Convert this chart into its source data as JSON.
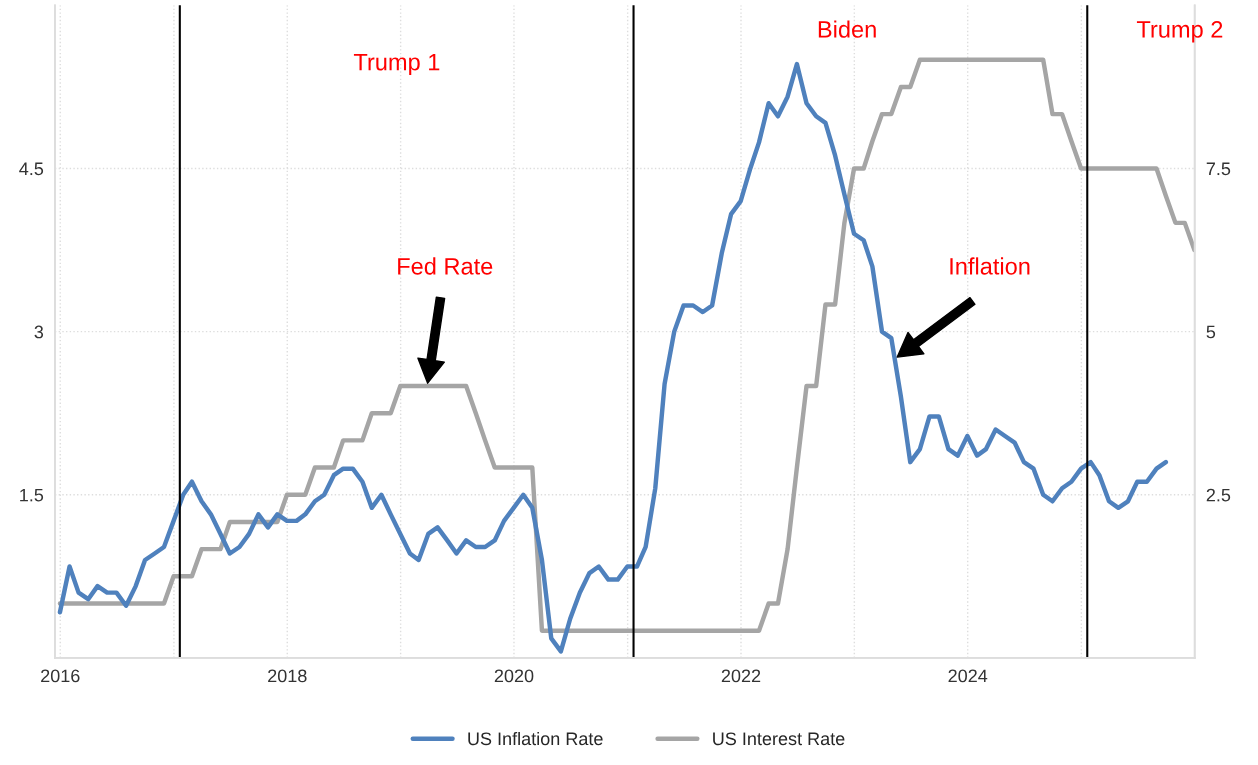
{
  "chart_data": {
    "type": "line",
    "xlim": [
      "2015-12-15",
      "2026-01-01"
    ],
    "xticks": [
      "2016",
      {
        "value": "2017",
        "label": null
      },
      "2018",
      {
        "value": "2019",
        "label": null
      },
      "2020",
      {
        "value": "2021",
        "label": null
      },
      "2022",
      {
        "value": "2023",
        "label": null
      },
      "2024",
      {
        "value": "2025",
        "label": null
      }
    ],
    "ylim": [
      0,
      6
    ],
    "yticks": [
      1.5,
      3,
      4.5
    ],
    "y2lim": [
      0,
      10
    ],
    "y2ticks": [
      2.5,
      5,
      7.5
    ],
    "grid": true,
    "legend": "bottom",
    "series": [
      {
        "name": "US Inflation Rate",
        "color": "#4f81bd",
        "axis": "y2",
        "x": [
          "2015-12-31",
          "2016-01-31",
          "2016-02-29",
          "2016-03-31",
          "2016-04-30",
          "2016-05-31",
          "2016-06-30",
          "2016-07-31",
          "2016-08-31",
          "2016-09-30",
          "2016-10-31",
          "2016-11-30",
          "2016-12-31",
          "2017-01-31",
          "2017-02-28",
          "2017-03-31",
          "2017-04-30",
          "2017-05-31",
          "2017-06-30",
          "2017-07-31",
          "2017-08-31",
          "2017-09-30",
          "2017-10-31",
          "2017-11-30",
          "2017-12-31",
          "2018-01-31",
          "2018-02-28",
          "2018-03-31",
          "2018-04-30",
          "2018-05-31",
          "2018-06-30",
          "2018-07-31",
          "2018-08-31",
          "2018-09-30",
          "2018-10-31",
          "2018-11-30",
          "2018-12-31",
          "2019-01-31",
          "2019-02-28",
          "2019-03-31",
          "2019-04-30",
          "2019-05-31",
          "2019-06-30",
          "2019-07-31",
          "2019-08-31",
          "2019-09-30",
          "2019-10-31",
          "2019-11-30",
          "2019-12-31",
          "2020-01-31",
          "2020-02-29",
          "2020-03-31",
          "2020-04-30",
          "2020-05-31",
          "2020-06-30",
          "2020-07-31",
          "2020-08-31",
          "2020-09-30",
          "2020-10-31",
          "2020-11-30",
          "2020-12-31",
          "2021-01-31",
          "2021-02-28",
          "2021-03-31",
          "2021-04-30",
          "2021-05-31",
          "2021-06-30",
          "2021-07-31",
          "2021-08-31",
          "2021-09-30",
          "2021-10-31",
          "2021-11-30",
          "2021-12-31",
          "2022-01-31",
          "2022-02-28",
          "2022-03-31",
          "2022-04-30",
          "2022-05-31",
          "2022-06-30",
          "2022-07-31",
          "2022-08-31",
          "2022-09-30",
          "2022-10-31",
          "2022-11-30",
          "2022-12-31",
          "2023-01-31",
          "2023-02-28",
          "2023-03-31",
          "2023-04-30",
          "2023-05-31",
          "2023-06-30",
          "2023-07-31",
          "2023-08-31",
          "2023-09-30",
          "2023-10-31",
          "2023-11-30",
          "2023-12-31",
          "2024-01-31",
          "2024-02-29",
          "2024-03-31",
          "2024-04-30",
          "2024-05-31",
          "2024-06-30",
          "2024-07-31",
          "2024-08-31",
          "2024-09-30",
          "2024-10-31",
          "2024-11-30",
          "2024-12-31",
          "2025-01-31",
          "2025-02-28",
          "2025-03-31",
          "2025-04-30",
          "2025-05-31",
          "2025-06-30",
          "2025-07-31",
          "2025-08-31",
          "2025-09-30"
        ],
        "values": [
          0.7,
          1.4,
          1.0,
          0.9,
          1.1,
          1.0,
          1.0,
          0.8,
          1.1,
          1.5,
          1.6,
          1.7,
          2.1,
          2.5,
          2.7,
          2.4,
          2.2,
          1.9,
          1.6,
          1.7,
          1.9,
          2.2,
          2.0,
          2.2,
          2.1,
          2.1,
          2.2,
          2.4,
          2.5,
          2.8,
          2.9,
          2.9,
          2.7,
          2.3,
          2.5,
          2.2,
          1.9,
          1.6,
          1.5,
          1.9,
          2.0,
          1.8,
          1.6,
          1.8,
          1.7,
          1.7,
          1.8,
          2.1,
          2.3,
          2.5,
          2.3,
          1.5,
          0.3,
          0.1,
          0.6,
          1.0,
          1.3,
          1.4,
          1.2,
          1.2,
          1.4,
          1.4,
          1.7,
          2.6,
          4.2,
          5.0,
          5.4,
          5.4,
          5.3,
          5.4,
          6.2,
          6.8,
          7.0,
          7.5,
          7.9,
          8.5,
          8.3,
          8.6,
          9.1,
          8.5,
          8.3,
          8.2,
          7.7,
          7.1,
          6.5,
          6.4,
          6.0,
          5.0,
          4.9,
          4.0,
          3.0,
          3.2,
          3.7,
          3.7,
          3.2,
          3.1,
          3.4,
          3.1,
          3.2,
          3.5,
          3.4,
          3.3,
          3.0,
          2.9,
          2.5,
          2.4,
          2.6,
          2.7,
          2.9,
          3.0,
          2.8,
          2.4,
          2.3,
          2.4,
          2.7,
          2.7,
          2.9,
          3.0
        ]
      },
      {
        "name": "US Interest Rate",
        "color": "#a5a5a5",
        "axis": "y",
        "x": [
          "2015-12-31",
          "2016-11-30",
          "2016-12-31",
          "2017-02-28",
          "2017-03-31",
          "2017-05-31",
          "2017-06-30",
          "2017-11-30",
          "2017-12-31",
          "2018-02-28",
          "2018-03-31",
          "2018-05-31",
          "2018-06-30",
          "2018-08-31",
          "2018-09-30",
          "2018-11-30",
          "2018-12-31",
          "2019-07-31",
          "2019-08-31",
          "2019-09-30",
          "2019-10-31",
          "2020-02-29",
          "2020-03-31",
          "2022-02-28",
          "2022-03-31",
          "2022-04-30",
          "2022-05-31",
          "2022-06-30",
          "2022-07-31",
          "2022-08-31",
          "2022-09-30",
          "2022-10-31",
          "2022-11-30",
          "2022-12-31",
          "2023-01-31",
          "2023-02-28",
          "2023-03-31",
          "2023-04-30",
          "2023-05-31",
          "2023-06-30",
          "2023-07-31",
          "2024-08-31",
          "2024-09-30",
          "2024-10-31",
          "2024-11-30",
          "2024-12-31",
          "2025-08-31",
          "2025-09-30",
          "2025-10-31",
          "2025-11-30",
          "2025-12-31"
        ],
        "values": [
          0.5,
          0.5,
          0.75,
          0.75,
          1.0,
          1.0,
          1.25,
          1.25,
          1.5,
          1.5,
          1.75,
          1.75,
          2.0,
          2.0,
          2.25,
          2.25,
          2.5,
          2.5,
          2.25,
          2.0,
          1.75,
          1.75,
          0.25,
          0.25,
          0.5,
          0.5,
          1.0,
          1.75,
          2.5,
          2.5,
          3.25,
          3.25,
          4.0,
          4.5,
          4.5,
          4.75,
          5.0,
          5.0,
          5.25,
          5.25,
          5.5,
          5.5,
          5.0,
          5.0,
          4.75,
          4.5,
          4.5,
          4.25,
          4.0,
          4.0,
          3.75
        ]
      }
    ],
    "ref_lines": [
      {
        "axis": "x",
        "value": "2017-01-20",
        "color": "#000000"
      },
      {
        "axis": "x",
        "value": "2021-01-20",
        "color": "#000000"
      },
      {
        "axis": "x",
        "value": "2025-01-20",
        "color": "#000000"
      }
    ],
    "annotations": [
      "Trump 1",
      "Biden",
      "Trump 2",
      "Fed Rate",
      "Inflation"
    ]
  }
}
